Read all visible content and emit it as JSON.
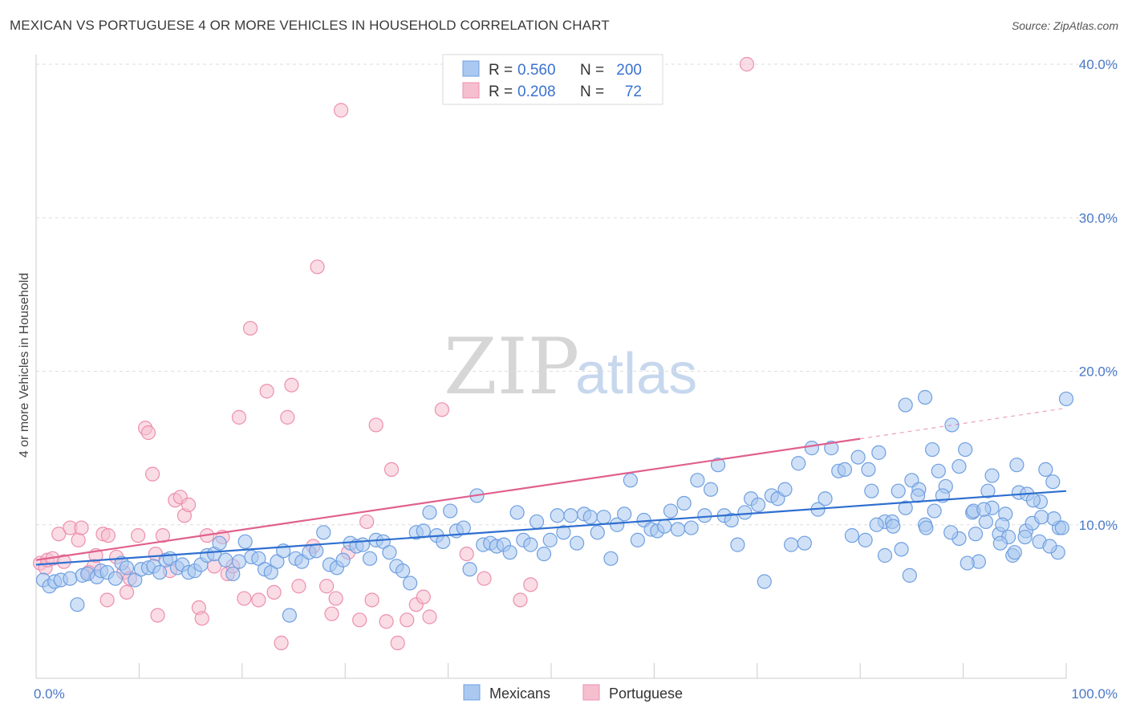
{
  "header": {
    "title": "MEXICAN VS PORTUGUESE 4 OR MORE VEHICLES IN HOUSEHOLD CORRELATION CHART",
    "source": "Source: ZipAtlas.com"
  },
  "watermark": {
    "part1": "ZIP",
    "part2": "atlas"
  },
  "legend": {
    "rows": [
      {
        "r_label": "R =",
        "r_value": "0.560",
        "n_label": "N =",
        "n_value": "200"
      },
      {
        "r_label": "R =",
        "r_value": "0.208",
        "n_label": "N =",
        "n_value": "72"
      }
    ]
  },
  "bottom_legend": {
    "items": [
      "Mexicans",
      "Portuguese"
    ]
  },
  "colors": {
    "mexicans_fill": "#aac8f0",
    "mexicans_stroke": "#6f9fe0",
    "mexicans_line": "#2f6fcf",
    "portuguese_fill": "#f6bfd0",
    "portuguese_stroke": "#ec8fae",
    "portuguese_line": "#e0608e",
    "grid": "#dddddd",
    "tick_text": "#4a78c8"
  },
  "chart_data": {
    "type": "scatter",
    "title": "MEXICAN VS PORTUGUESE 4 OR MORE VEHICLES IN HOUSEHOLD CORRELATION CHART",
    "xlabel": "",
    "ylabel": "4 or more Vehicles in Household",
    "xlim": [
      0,
      100
    ],
    "ylim": [
      0,
      40
    ],
    "x_tick_labels": [
      "0.0%",
      "100.0%"
    ],
    "y_ticks": [
      10,
      20,
      30,
      40
    ],
    "y_tick_labels": [
      "10.0%",
      "20.0%",
      "30.0%",
      "40.0%"
    ],
    "grid": true,
    "legend_position": "top-center",
    "series": [
      {
        "name": "Mexicans",
        "r": 0.56,
        "n": 200,
        "trendline": {
          "x": [
            0,
            100
          ],
          "y": [
            7.4,
            12.2
          ]
        },
        "points": [
          [
            0.7,
            6.4
          ],
          [
            1.3,
            6.0
          ],
          [
            1.8,
            6.3
          ],
          [
            2.4,
            6.4
          ],
          [
            3.3,
            6.5
          ],
          [
            4.0,
            4.8
          ],
          [
            4.5,
            6.7
          ],
          [
            5.0,
            6.8
          ],
          [
            5.9,
            6.6
          ],
          [
            6.3,
            7.0
          ],
          [
            6.9,
            6.9
          ],
          [
            7.7,
            6.5
          ],
          [
            8.3,
            7.5
          ],
          [
            8.8,
            7.2
          ],
          [
            9.6,
            6.4
          ],
          [
            10.2,
            7.1
          ],
          [
            10.9,
            7.2
          ],
          [
            11.4,
            7.3
          ],
          [
            12.0,
            6.9
          ],
          [
            12.6,
            7.7
          ],
          [
            13.0,
            7.8
          ],
          [
            13.7,
            7.2
          ],
          [
            14.2,
            7.4
          ],
          [
            14.8,
            6.9
          ],
          [
            15.4,
            7.0
          ],
          [
            16.0,
            7.4
          ],
          [
            16.6,
            8.0
          ],
          [
            17.3,
            8.1
          ],
          [
            17.8,
            8.8
          ],
          [
            18.4,
            7.7
          ],
          [
            19.1,
            6.8
          ],
          [
            19.7,
            7.6
          ],
          [
            20.3,
            8.9
          ],
          [
            20.9,
            7.9
          ],
          [
            21.6,
            7.8
          ],
          [
            22.2,
            7.1
          ],
          [
            22.8,
            6.9
          ],
          [
            23.4,
            7.6
          ],
          [
            24.0,
            8.3
          ],
          [
            24.6,
            4.1
          ],
          [
            25.2,
            7.8
          ],
          [
            25.8,
            7.6
          ],
          [
            26.5,
            8.2
          ],
          [
            27.2,
            8.3
          ],
          [
            27.9,
            9.5
          ],
          [
            28.5,
            7.4
          ],
          [
            29.2,
            7.2
          ],
          [
            29.8,
            7.7
          ],
          [
            30.5,
            8.8
          ],
          [
            31.1,
            8.6
          ],
          [
            31.7,
            8.7
          ],
          [
            32.4,
            7.8
          ],
          [
            33.0,
            9.0
          ],
          [
            33.7,
            8.9
          ],
          [
            34.3,
            8.2
          ],
          [
            35.0,
            7.3
          ],
          [
            35.6,
            7.0
          ],
          [
            36.3,
            6.2
          ],
          [
            36.9,
            9.5
          ],
          [
            37.6,
            9.6
          ],
          [
            38.2,
            10.8
          ],
          [
            38.9,
            9.3
          ],
          [
            39.5,
            8.9
          ],
          [
            40.2,
            10.9
          ],
          [
            40.8,
            9.6
          ],
          [
            41.5,
            9.8
          ],
          [
            42.1,
            7.1
          ],
          [
            42.8,
            11.9
          ],
          [
            43.4,
            8.7
          ],
          [
            44.1,
            8.8
          ],
          [
            44.7,
            8.6
          ],
          [
            45.4,
            8.7
          ],
          [
            46.0,
            8.2
          ],
          [
            46.7,
            10.8
          ],
          [
            47.3,
            9.0
          ],
          [
            48.0,
            8.7
          ],
          [
            48.6,
            10.2
          ],
          [
            49.3,
            8.1
          ],
          [
            49.9,
            9.0
          ],
          [
            50.6,
            10.6
          ],
          [
            51.2,
            9.5
          ],
          [
            51.9,
            10.6
          ],
          [
            52.5,
            8.8
          ],
          [
            53.2,
            10.7
          ],
          [
            53.8,
            10.5
          ],
          [
            54.5,
            9.5
          ],
          [
            55.1,
            10.5
          ],
          [
            55.8,
            7.8
          ],
          [
            56.4,
            10.0
          ],
          [
            57.1,
            10.7
          ],
          [
            57.7,
            12.9
          ],
          [
            58.4,
            9.0
          ],
          [
            59.0,
            10.3
          ],
          [
            59.7,
            9.7
          ],
          [
            60.3,
            9.6
          ],
          [
            61.0,
            9.9
          ],
          [
            61.6,
            10.9
          ],
          [
            62.3,
            9.7
          ],
          [
            62.9,
            11.4
          ],
          [
            63.6,
            9.8
          ],
          [
            64.2,
            12.9
          ],
          [
            64.9,
            10.6
          ],
          [
            65.5,
            12.3
          ],
          [
            66.2,
            13.9
          ],
          [
            66.8,
            10.6
          ],
          [
            67.5,
            10.3
          ],
          [
            68.1,
            8.7
          ],
          [
            68.8,
            10.8
          ],
          [
            69.4,
            11.7
          ],
          [
            70.1,
            11.3
          ],
          [
            70.7,
            6.3
          ],
          [
            71.4,
            11.9
          ],
          [
            72.0,
            11.7
          ],
          [
            72.7,
            12.3
          ],
          [
            73.3,
            8.7
          ],
          [
            74.0,
            14.0
          ],
          [
            74.6,
            8.8
          ],
          [
            75.3,
            15.0
          ],
          [
            75.9,
            11.0
          ],
          [
            76.6,
            11.7
          ],
          [
            77.2,
            15.0
          ],
          [
            77.9,
            13.5
          ],
          [
            78.5,
            13.6
          ],
          [
            79.2,
            9.3
          ],
          [
            79.8,
            14.4
          ],
          [
            80.5,
            9.0
          ],
          [
            81.1,
            12.2
          ],
          [
            81.8,
            14.7
          ],
          [
            82.4,
            10.2
          ],
          [
            83.1,
            10.2
          ],
          [
            83.7,
            12.2
          ],
          [
            84.4,
            11.1
          ],
          [
            85.0,
            12.9
          ],
          [
            85.7,
            12.3
          ],
          [
            86.3,
            10.0
          ],
          [
            87.0,
            14.9
          ],
          [
            87.6,
            13.5
          ],
          [
            88.3,
            12.5
          ],
          [
            88.9,
            16.5
          ],
          [
            89.6,
            13.8
          ],
          [
            90.2,
            14.9
          ],
          [
            90.9,
            10.8
          ],
          [
            91.5,
            7.6
          ],
          [
            92.2,
            10.2
          ],
          [
            92.8,
            13.2
          ],
          [
            93.5,
            9.4
          ],
          [
            94.1,
            10.7
          ],
          [
            94.8,
            8.0
          ],
          [
            95.4,
            12.1
          ],
          [
            96.1,
            9.6
          ],
          [
            96.7,
            10.1
          ],
          [
            97.4,
            8.9
          ],
          [
            98.0,
            13.6
          ],
          [
            98.7,
            12.8
          ],
          [
            99.3,
            9.8
          ],
          [
            84.4,
            17.8
          ],
          [
            86.3,
            18.3
          ],
          [
            91.0,
            10.9
          ],
          [
            92.4,
            12.2
          ],
          [
            93.8,
            10.0
          ],
          [
            95.0,
            8.2
          ],
          [
            96.2,
            12.0
          ],
          [
            97.5,
            11.5
          ],
          [
            98.8,
            10.4
          ],
          [
            99.6,
            9.8
          ],
          [
            100.0,
            18.2
          ],
          [
            99.2,
            8.2
          ],
          [
            98.4,
            8.6
          ],
          [
            97.6,
            10.5
          ],
          [
            96.8,
            11.6
          ],
          [
            96.0,
            9.2
          ],
          [
            95.2,
            13.9
          ],
          [
            94.4,
            9.2
          ],
          [
            93.6,
            8.8
          ],
          [
            92.8,
            11.1
          ],
          [
            92.0,
            11.0
          ],
          [
            91.2,
            9.4
          ],
          [
            90.4,
            7.5
          ],
          [
            89.6,
            9.1
          ],
          [
            88.8,
            9.5
          ],
          [
            88.0,
            11.9
          ],
          [
            87.2,
            10.9
          ],
          [
            86.4,
            9.8
          ],
          [
            85.6,
            11.9
          ],
          [
            84.8,
            6.7
          ],
          [
            84.0,
            8.4
          ],
          [
            83.2,
            9.9
          ],
          [
            82.4,
            8.0
          ],
          [
            81.6,
            10.0
          ],
          [
            80.8,
            13.6
          ]
        ]
      },
      {
        "name": "Portuguese",
        "r": 0.208,
        "n": 72,
        "trendline": {
          "x": [
            0,
            80
          ],
          "y": [
            7.7,
            15.6
          ]
        },
        "trendline_dashed": {
          "x": [
            80,
            100
          ],
          "y": [
            15.6,
            17.6
          ]
        },
        "points": [
          [
            0.4,
            7.5
          ],
          [
            0.9,
            7.2
          ],
          [
            1.1,
            7.7
          ],
          [
            1.6,
            7.8
          ],
          [
            2.2,
            9.4
          ],
          [
            2.7,
            7.6
          ],
          [
            3.3,
            9.8
          ],
          [
            4.1,
            9.0
          ],
          [
            4.4,
            9.8
          ],
          [
            5.6,
            7.3
          ],
          [
            5.8,
            8.0
          ],
          [
            6.5,
            9.4
          ],
          [
            7.0,
            9.3
          ],
          [
            7.8,
            7.9
          ],
          [
            8.5,
            6.9
          ],
          [
            8.8,
            5.6
          ],
          [
            9.1,
            6.5
          ],
          [
            9.9,
            9.3
          ],
          [
            10.6,
            16.3
          ],
          [
            10.9,
            16.0
          ],
          [
            11.3,
            13.3
          ],
          [
            11.8,
            4.1
          ],
          [
            12.3,
            9.3
          ],
          [
            13.0,
            7.0
          ],
          [
            13.5,
            11.6
          ],
          [
            14.0,
            11.8
          ],
          [
            14.4,
            10.6
          ],
          [
            14.8,
            11.3
          ],
          [
            15.8,
            4.6
          ],
          [
            16.1,
            3.9
          ],
          [
            16.6,
            9.3
          ],
          [
            17.3,
            7.3
          ],
          [
            18.1,
            9.2
          ],
          [
            18.6,
            6.8
          ],
          [
            19.1,
            7.3
          ],
          [
            19.7,
            17.0
          ],
          [
            20.2,
            5.2
          ],
          [
            20.8,
            22.8
          ],
          [
            21.6,
            5.1
          ],
          [
            22.4,
            18.7
          ],
          [
            23.1,
            5.6
          ],
          [
            23.8,
            2.3
          ],
          [
            24.4,
            17.0
          ],
          [
            24.8,
            19.1
          ],
          [
            25.5,
            6.0
          ],
          [
            27.3,
            26.8
          ],
          [
            28.2,
            6.0
          ],
          [
            28.7,
            4.2
          ],
          [
            29.1,
            5.2
          ],
          [
            29.6,
            37.0
          ],
          [
            30.3,
            8.2
          ],
          [
            31.4,
            3.8
          ],
          [
            32.1,
            10.2
          ],
          [
            32.6,
            5.1
          ],
          [
            33.0,
            16.5
          ],
          [
            34.0,
            3.7
          ],
          [
            34.5,
            13.6
          ],
          [
            35.1,
            2.3
          ],
          [
            36.0,
            3.8
          ],
          [
            36.9,
            4.8
          ],
          [
            37.6,
            5.3
          ],
          [
            38.2,
            4.0
          ],
          [
            39.4,
            17.5
          ],
          [
            41.8,
            8.1
          ],
          [
            43.5,
            6.5
          ],
          [
            47.0,
            5.1
          ],
          [
            48.0,
            6.1
          ],
          [
            69.0,
            40.0
          ],
          [
            6.9,
            5.1
          ],
          [
            11.6,
            8.1
          ],
          [
            26.9,
            8.6
          ],
          [
            5.1,
            6.9
          ]
        ]
      }
    ]
  }
}
